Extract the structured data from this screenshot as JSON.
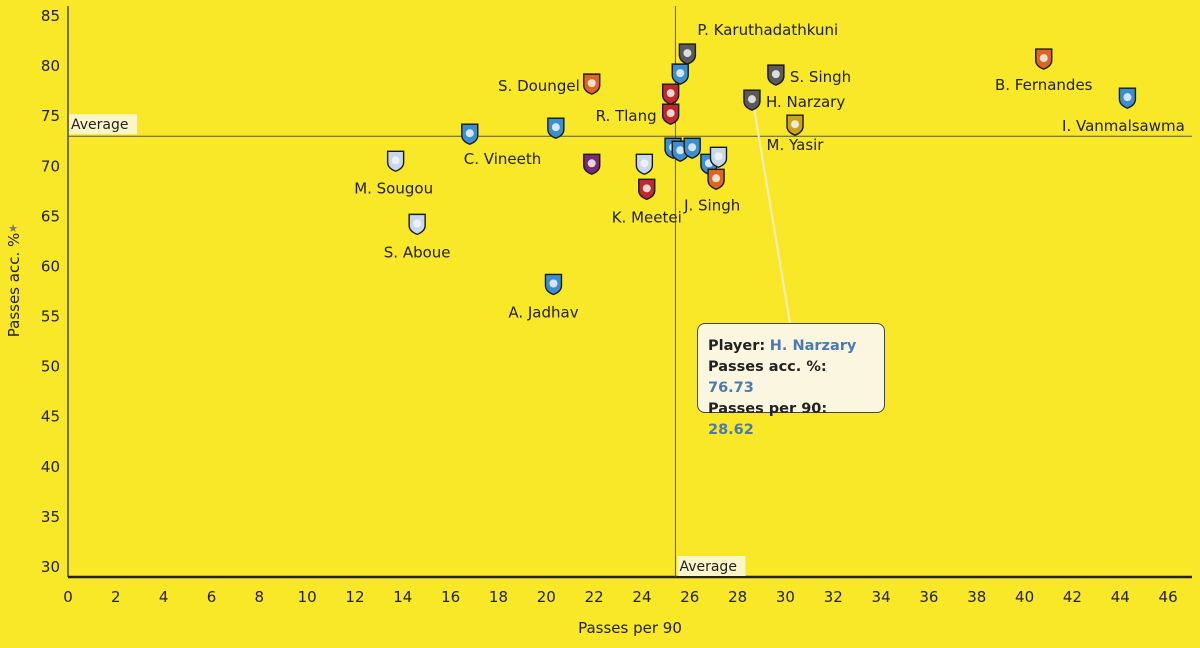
{
  "chart_data": {
    "type": "scatter",
    "xlabel": "Passes per 90",
    "ylabel": "Passes acc. %",
    "xlim": [
      0,
      47
    ],
    "ylim": [
      29,
      86
    ],
    "x_ticks": [
      "0",
      "2",
      "4",
      "6",
      "8",
      "10",
      "12",
      "14",
      "16",
      "18",
      "20",
      "22",
      "24",
      "26",
      "28",
      "30",
      "32",
      "34",
      "36",
      "38",
      "40",
      "42",
      "44",
      "46"
    ],
    "y_ticks": [
      "30",
      "35",
      "40",
      "45",
      "50",
      "55",
      "60",
      "65",
      "70",
      "75",
      "80",
      "85"
    ],
    "x_ticks_values": [
      0,
      2,
      4,
      6,
      8,
      10,
      12,
      14,
      16,
      18,
      20,
      22,
      24,
      26,
      28,
      30,
      32,
      34,
      36,
      38,
      40,
      42,
      44,
      46
    ],
    "y_ticks_values": [
      30,
      35,
      40,
      45,
      50,
      55,
      60,
      65,
      70,
      75,
      80,
      85
    ],
    "grid": false,
    "reference_lines": {
      "x": {
        "value": 25.4,
        "label": "Average"
      },
      "y": {
        "value": 73.0,
        "label": "Average"
      }
    },
    "points": [
      {
        "label": "P. Karuthadathkuni",
        "x": 25.9,
        "y": 81.3,
        "badge": "#5a5a5a"
      },
      {
        "label": "",
        "x": 25.6,
        "y": 79.3,
        "badge": "#3a8fd0"
      },
      {
        "label": "S. Doungel",
        "x": 21.9,
        "y": 78.3,
        "badge": "#e0661f"
      },
      {
        "label": "S. Singh",
        "x": 29.6,
        "y": 79.2,
        "badge": "#5a5a5a"
      },
      {
        "label": "B. Fernandes",
        "x": 40.8,
        "y": 80.8,
        "badge": "#e0661f"
      },
      {
        "label": "I. Vanmalsawma",
        "x": 44.3,
        "y": 76.9,
        "badge": "#3a8fd0"
      },
      {
        "label": "H. Narzary",
        "x": 28.6,
        "y": 76.7,
        "badge": "#5a5a5a"
      },
      {
        "label": "",
        "x": 25.2,
        "y": 77.3,
        "badge": "#c0282d"
      },
      {
        "label": "R. Tlang",
        "x": 25.2,
        "y": 75.3,
        "badge": "#c0282d"
      },
      {
        "label": "M. Yasir",
        "x": 30.4,
        "y": 74.2,
        "badge": "#c9a21e"
      },
      {
        "label": "C. Vineeth",
        "x": 16.8,
        "y": 73.3,
        "badge": "#3a8fd0"
      },
      {
        "label": "",
        "x": 20.4,
        "y": 73.9,
        "badge": "#3a8fd0"
      },
      {
        "label": "M. Sougou",
        "x": 13.7,
        "y": 70.6,
        "badge": "#c8d8ec"
      },
      {
        "label": "",
        "x": 21.9,
        "y": 70.3,
        "badge": "#7a2b6e"
      },
      {
        "label": "",
        "x": 24.1,
        "y": 70.3,
        "badge": "#c8d8ec"
      },
      {
        "label": "",
        "x": 25.3,
        "y": 71.9,
        "badge": "#3a8fd0"
      },
      {
        "label": "",
        "x": 25.6,
        "y": 71.6,
        "badge": "#3a8fd0"
      },
      {
        "label": "",
        "x": 26.1,
        "y": 71.9,
        "badge": "#3a8fd0"
      },
      {
        "label": "",
        "x": 26.8,
        "y": 70.3,
        "badge": "#3a8fd0"
      },
      {
        "label": "",
        "x": 27.2,
        "y": 71.0,
        "badge": "#c8d8ec"
      },
      {
        "label": "J. Singh",
        "x": 27.1,
        "y": 68.8,
        "badge": "#e0661f"
      },
      {
        "label": "K. Meetei",
        "x": 24.2,
        "y": 67.8,
        "badge": "#c0282d"
      },
      {
        "label": "S. Aboue",
        "x": 14.6,
        "y": 64.3,
        "badge": "#c8d8ec"
      },
      {
        "label": "A. Jadhav",
        "x": 20.3,
        "y": 58.3,
        "badge": "#3a8fd0"
      }
    ],
    "tooltip": {
      "player_key": "Player:",
      "player_value": "H. Narzary",
      "acc_key": "Passes acc. %:",
      "acc_value": "76.73",
      "p90_key": "Passes per 90:",
      "p90_value": "28.62",
      "pointer_x": 28.62,
      "pointer_y": 76.73
    }
  }
}
